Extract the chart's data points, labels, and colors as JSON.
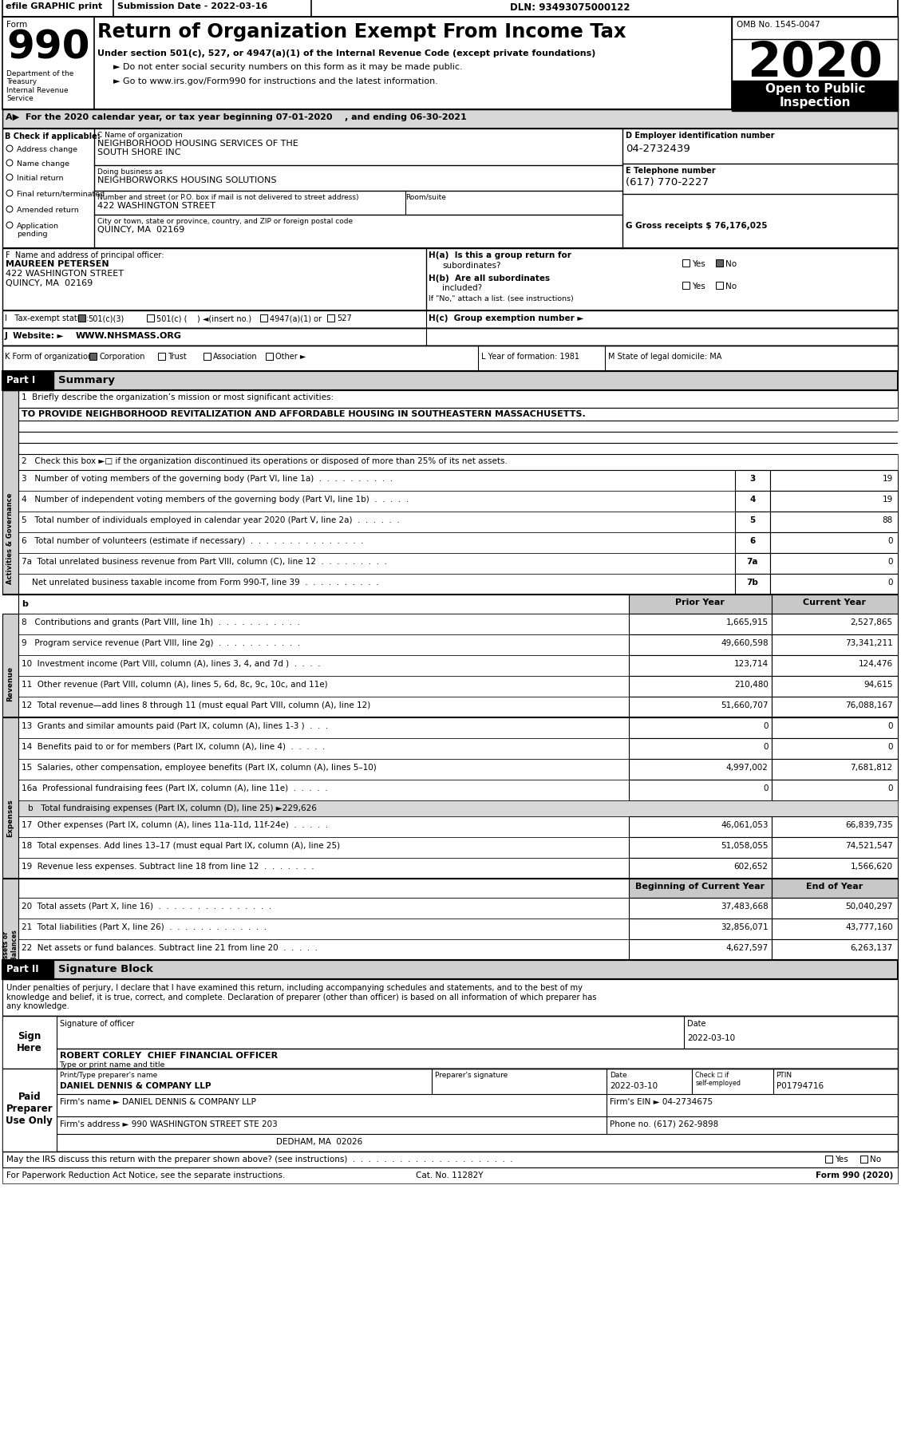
{
  "title": "Return of Organization Exempt From Income Tax",
  "form_number": "990",
  "year": "2020",
  "omb": "OMB No. 1545-0047",
  "efile_text": "efile GRAPHIC print",
  "submission_date": "Submission Date - 2022-03-16",
  "dln": "DLN: 93493075000122",
  "subtitle1": "Under section 501(c), 527, or 4947(a)(1) of the Internal Revenue Code (except private foundations)",
  "bullet1": "► Do not enter social security numbers on this form as it may be made public.",
  "bullet2": "► Go to www.irs.gov/Form990 for instructions and the latest information.",
  "dept_text": "Department of the\nTreasury\nInternal Revenue\nService",
  "open_public": "Open to Public\nInspection",
  "section_a": "A▶  For the 2020 calendar year, or tax year beginning 07-01-2020    , and ending 06-30-2021",
  "check_applicable": "B Check if applicable:",
  "check_items": [
    "Address change",
    "Name change",
    "Initial return",
    "Final return/terminated",
    "Amended return",
    "Application\npending"
  ],
  "org_name_label": "C Name of organization",
  "org_name1": "NEIGHBORHOOD HOUSING SERVICES OF THE",
  "org_name2": "SOUTH SHORE INC",
  "dba_label": "Doing business as",
  "dba_name": "NEIGHBORWORKS HOUSING SOLUTIONS",
  "address_label": "Number and street (or P.O. box if mail is not delivered to street address)",
  "address": "422 WASHINGTON STREET",
  "room_label": "Room/suite",
  "city_label": "City or town, state or province, country, and ZIP or foreign postal code",
  "city": "QUINCY, MA  02169",
  "ein_label": "D Employer identification number",
  "ein": "04-2732439",
  "phone_label": "E Telephone number",
  "phone": "(617) 770-2227",
  "gross_label": "G Gross receipts $ 76,176,025",
  "principal_label": "F  Name and address of principal officer:",
  "principal_name": "MAUREEN PETERSEN",
  "principal_address": "422 WASHINGTON STREET",
  "principal_city": "QUINCY, MA  02169",
  "ha_label": "H(a)  Is this a group return for",
  "ha_sub": "subordinates?",
  "hb_label": "H(b)  Are all subordinates",
  "hb_sub": "included?",
  "hif_label": "If \"No,\" attach a list. (see instructions)",
  "hc_label": "H(c)  Group exemption number ►",
  "tax_exempt_label": "I   Tax-exempt status:",
  "tax_501c3_label": "501(c)(3)",
  "tax_501c_label": "501(c) (    ) ◄(insert no.)",
  "tax_4947_label": "4947(a)(1) or",
  "tax_527_label": "527",
  "website_label": "J  Website: ►",
  "website": "WWW.NHSMASS.ORG",
  "form_k_label": "K Form of organization:",
  "form_k_corp": "Corporation",
  "form_k_trust": "Trust",
  "form_k_assoc": "Association",
  "form_k_other": "Other ►",
  "year_formed_label": "L Year of formation: 1981",
  "state_label": "M State of legal domicile: MA",
  "part1_label": "Part I",
  "part1_title": "Summary",
  "mission_label": "1  Briefly describe the organization’s mission or most significant activities:",
  "mission": "TO PROVIDE NEIGHBORHOOD REVITALIZATION AND AFFORDABLE HOUSING IN SOUTHEASTERN MASSACHUSETTS.",
  "line2": "2   Check this box ►□ if the organization discontinued its operations or disposed of more than 25% of its net assets.",
  "line3_text": "3   Number of voting members of the governing body (Part VI, line 1a)  .  .  .  .  .  .  .  .  .  .",
  "line3_num": "3",
  "line3_val": "19",
  "line4_text": "4   Number of independent voting members of the governing body (Part VI, line 1b)  .  .  .  .  .",
  "line4_num": "4",
  "line4_val": "19",
  "line5_text": "5   Total number of individuals employed in calendar year 2020 (Part V, line 2a)  .  .  .  .  .  .",
  "line5_num": "5",
  "line5_val": "88",
  "line6_text": "6   Total number of volunteers (estimate if necessary)  .  .  .  .  .  .  .  .  .  .  .  .  .  .  .",
  "line6_num": "6",
  "line6_val": "0",
  "line7a_text": "7a  Total unrelated business revenue from Part VIII, column (C), line 12  .  .  .  .  .  .  .  .  .",
  "line7a_num": "7a",
  "line7a_val": "0",
  "line7b_text": "    Net unrelated business taxable income from Form 990-T, line 39  .  .  .  .  .  .  .  .  .  .",
  "line7b_num": "7b",
  "line7b_val": "0",
  "prior_year_label": "Prior Year",
  "current_year_label": "Current Year",
  "line8_text": "8   Contributions and grants (Part VIII, line 1h)  .  .  .  .  .  .  .  .  .  .  .",
  "line8_prior": "1,665,915",
  "line8_current": "2,527,865",
  "line9_text": "9   Program service revenue (Part VIII, line 2g)  .  .  .  .  .  .  .  .  .  .  .",
  "line9_prior": "49,660,598",
  "line9_current": "73,341,211",
  "line10_text": "10  Investment income (Part VIII, column (A), lines 3, 4, and 7d )  .  .  .  .",
  "line10_prior": "123,714",
  "line10_current": "124,476",
  "line11_text": "11  Other revenue (Part VIII, column (A), lines 5, 6d, 8c, 9c, 10c, and 11e)",
  "line11_prior": "210,480",
  "line11_current": "94,615",
  "line12_text": "12  Total revenue—add lines 8 through 11 (must equal Part VIII, column (A), line 12)",
  "line12_prior": "51,660,707",
  "line12_current": "76,088,167",
  "line13_text": "13  Grants and similar amounts paid (Part IX, column (A), lines 1-3 )  .  .  .",
  "line13_prior": "0",
  "line13_current": "0",
  "line14_text": "14  Benefits paid to or for members (Part IX, column (A), line 4)  .  .  .  .  .",
  "line14_prior": "0",
  "line14_current": "0",
  "line15_text": "15  Salaries, other compensation, employee benefits (Part IX, column (A), lines 5–10)",
  "line15_prior": "4,997,002",
  "line15_current": "7,681,812",
  "line16a_text": "16a  Professional fundraising fees (Part IX, column (A), line 11e)  .  .  .  .  .",
  "line16a_prior": "0",
  "line16a_current": "0",
  "line16b_text": "b   Total fundraising expenses (Part IX, column (D), line 25) ►229,626",
  "line17_text": "17  Other expenses (Part IX, column (A), lines 11a-11d, 11f-24e)  .  .  .  .  .",
  "line17_prior": "46,061,053",
  "line17_current": "66,839,735",
  "line18_text": "18  Total expenses. Add lines 13–17 (must equal Part IX, column (A), line 25)",
  "line18_prior": "51,058,055",
  "line18_current": "74,521,547",
  "line19_text": "19  Revenue less expenses. Subtract line 18 from line 12  .  .  .  .  .  .  .",
  "line19_prior": "602,652",
  "line19_current": "1,566,620",
  "beg_year_label": "Beginning of Current Year",
  "end_year_label": "End of Year",
  "line20_text": "20  Total assets (Part X, line 16)  .  .  .  .  .  .  .  .  .  .  .  .  .  .  .",
  "line20_beg": "37,483,668",
  "line20_end": "50,040,297",
  "line21_text": "21  Total liabilities (Part X, line 26)  .  .  .  .  .  .  .  .  .  .  .  .  .",
  "line21_beg": "32,856,071",
  "line21_end": "43,777,160",
  "line22_text": "22  Net assets or fund balances. Subtract line 21 from line 20  .  .  .  .  .",
  "line22_beg": "4,627,597",
  "line22_end": "6,263,137",
  "part2_label": "Part II",
  "part2_title": "Signature Block",
  "sig_perjury": "Under penalties of perjury, I declare that I have examined this return, including accompanying schedules and statements, and to the best of my\nknowledge and belief, it is true, correct, and complete. Declaration of preparer (other than officer) is based on all information of which preparer has\nany knowledge.",
  "sign_here": "Sign\nHere",
  "sig_officer_label": "Signature of officer",
  "sig_date_label": "Date",
  "sig_date": "2022-03-10",
  "sig_name": "ROBERT CORLEY  CHIEF FINANCIAL OFFICER",
  "sig_type_label": "Type or print name and title",
  "paid_preparer": "Paid\nPreparer\nUse Only",
  "prep_name_label": "Print/Type preparer's name",
  "prep_sig_label": "Preparer's signature",
  "prep_date_label": "Date",
  "prep_date": "2022-03-10",
  "prep_check_label": "Check ☐ if\nself-employed",
  "prep_ptin_label": "PTIN",
  "prep_ptin": "P01794716",
  "prep_firm_name": "DANIEL DENNIS & COMPANY LLP",
  "prep_ein_label": "Firm's EIN ►",
  "prep_ein": "04-2734675",
  "prep_firm_label": "Firm's name ►",
  "prep_addr_label": "Firm's address ►",
  "prep_address": "990 WASHINGTON STREET STE 203",
  "prep_city": "DEDHAM, MA  02026",
  "prep_phone_label": "Phone no.",
  "prep_phone": "(617) 262-9898",
  "discuss_text": "May the IRS discuss this return with the preparer shown above? (see instructions)  .  .  .  .  .  .  .  .  .  .  .  .  .  .  .  .  .  .  .  .  .",
  "for_paperwork": "For Paperwork Reduction Act Notice, see the separate instructions.",
  "cat_no": "Cat. No. 11282Y",
  "form_footer": "Form 990 (2020)"
}
